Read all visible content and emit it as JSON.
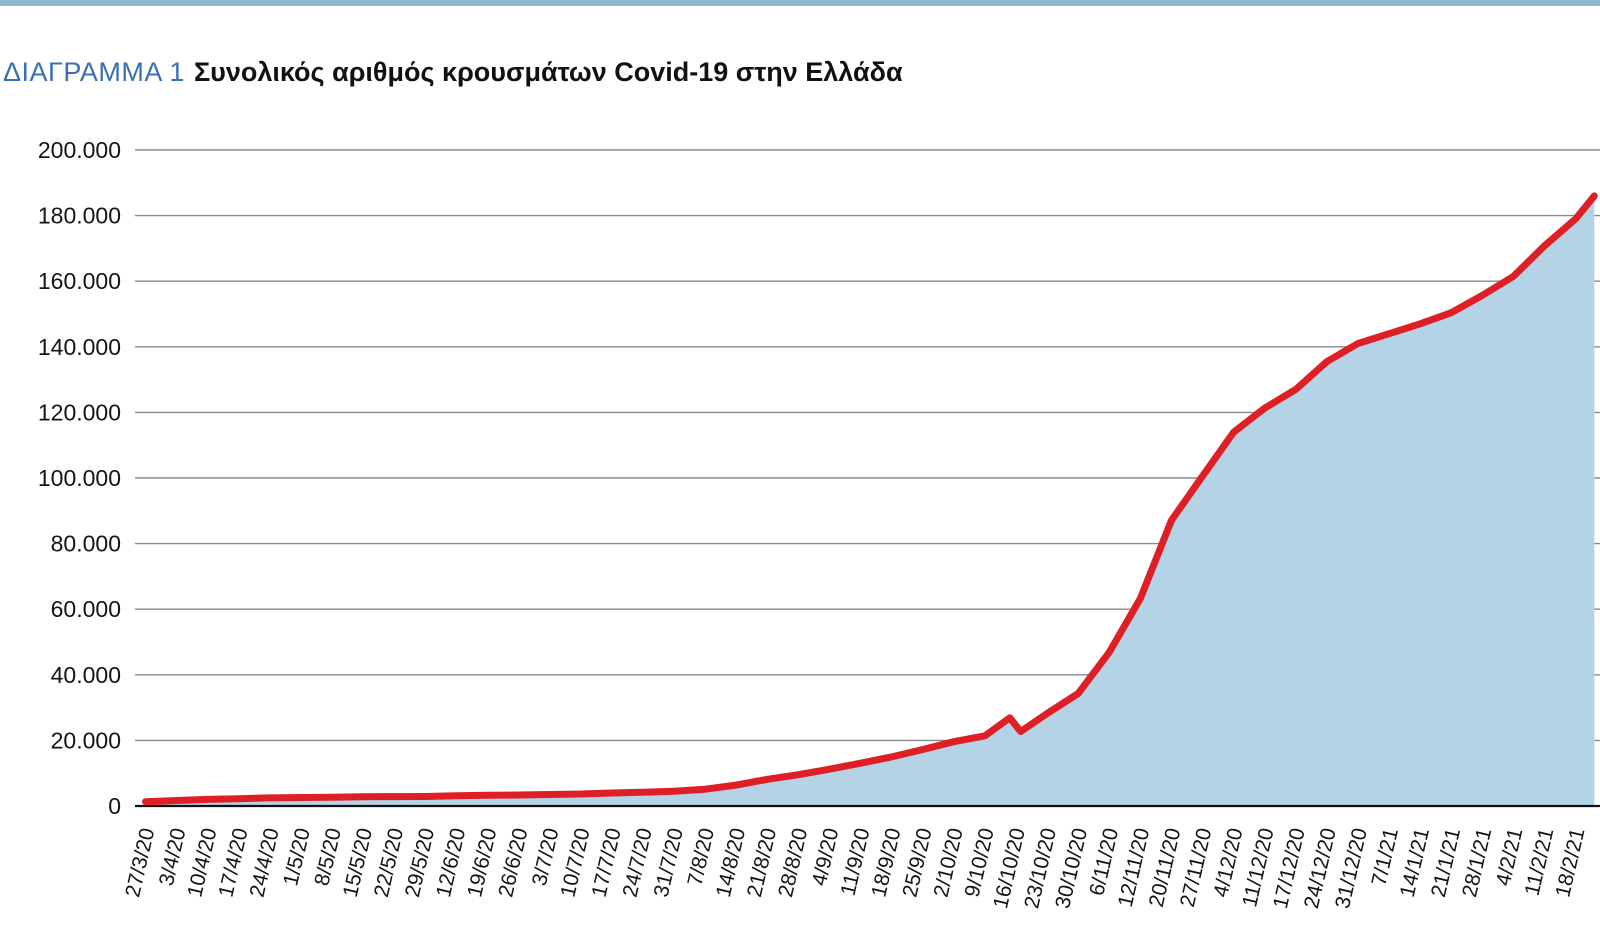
{
  "page": {
    "top_bar_color": "#8fb6d3",
    "background_color": "#ffffff"
  },
  "header": {
    "kicker": "ΔΙΑΓΡΑΜΜΑ 1",
    "kicker_color": "#3a6fb4",
    "title": "Συνολικός αριθμός κρουσμάτων Covid-19 στην Ελλάδα"
  },
  "chart_data": {
    "type": "area",
    "title": "Συνολικός αριθμός κρουσμάτων Covid-19 στην Ελλάδα",
    "xlabel": "",
    "ylabel": "",
    "ylim": [
      0,
      200000
    ],
    "ytick_step": 20000,
    "ytick_labels": [
      "0",
      "20.000",
      "40.000",
      "60.000",
      "80.000",
      "100.000",
      "120.000",
      "140.000",
      "160.000",
      "180.000",
      "200.000"
    ],
    "grid": "horizontal",
    "legend": "none",
    "line_color": "#df1f26",
    "fill_color": "#b5d3e6",
    "grid_color": "#8a8a8a",
    "axis_color": "#111111",
    "label_color": "#141414",
    "x_labels": [
      "27/3/20",
      "3/4/20",
      "10/4/20",
      "17/4/20",
      "24/4/20",
      "1/5/20",
      "8/5/20",
      "15/5/20",
      "22/5/20",
      "29/5/20",
      "12/6/20",
      "19/6/20",
      "26/6/20",
      "3/7/20",
      "10/7/20",
      "17/7/20",
      "24/7/20",
      "31/7/20",
      "7/8/20",
      "14/8/20",
      "21/8/20",
      "28/8/20",
      "4/9/20",
      "11/9/20",
      "18/9/20",
      "25/9/20",
      "2/10/20",
      "9/10/20",
      "16/10/20",
      "23/10/20",
      "30/10/20",
      "6/11/20",
      "12/11/20",
      "20/11/20",
      "27/11/20",
      "4/12/20",
      "11/12/20",
      "17/12/20",
      "24/12/20",
      "31/12/20",
      "7/1/21",
      "14/1/21",
      "21/1/21",
      "28/1/21",
      "4/2/21",
      "11/2/21",
      "18/2/21"
    ],
    "points": [
      [
        0,
        1314
      ],
      [
        1,
        1673
      ],
      [
        2,
        2011
      ],
      [
        3,
        2224
      ],
      [
        4,
        2463
      ],
      [
        5,
        2591
      ],
      [
        6,
        2678
      ],
      [
        7,
        2810
      ],
      [
        8,
        2853
      ],
      [
        9,
        2906
      ],
      [
        10,
        3121
      ],
      [
        11,
        3256
      ],
      [
        12,
        3343
      ],
      [
        13,
        3511
      ],
      [
        14,
        3672
      ],
      [
        15,
        3964
      ],
      [
        16,
        4193
      ],
      [
        17,
        4477
      ],
      [
        18,
        5123
      ],
      [
        19,
        6381
      ],
      [
        20,
        8138
      ],
      [
        21,
        9531
      ],
      [
        22,
        11206
      ],
      [
        23,
        13036
      ],
      [
        24,
        14978
      ],
      [
        25,
        17228
      ],
      [
        26,
        19613
      ],
      [
        27,
        21393
      ],
      [
        27.8,
        26900
      ],
      [
        28.15,
        22700
      ],
      [
        29,
        28216
      ],
      [
        30,
        34300
      ],
      [
        31,
        46900
      ],
      [
        32,
        63300
      ],
      [
        33,
        87100
      ],
      [
        34,
        100600
      ],
      [
        35,
        114000
      ],
      [
        36,
        121300
      ],
      [
        37,
        127000
      ],
      [
        38,
        135500
      ],
      [
        39,
        141000
      ],
      [
        40,
        144000
      ],
      [
        41,
        147000
      ],
      [
        42,
        150400
      ],
      [
        43,
        155700
      ],
      [
        44,
        161500
      ],
      [
        45,
        170800
      ],
      [
        46,
        179000
      ],
      [
        46.6,
        186000
      ]
    ]
  }
}
